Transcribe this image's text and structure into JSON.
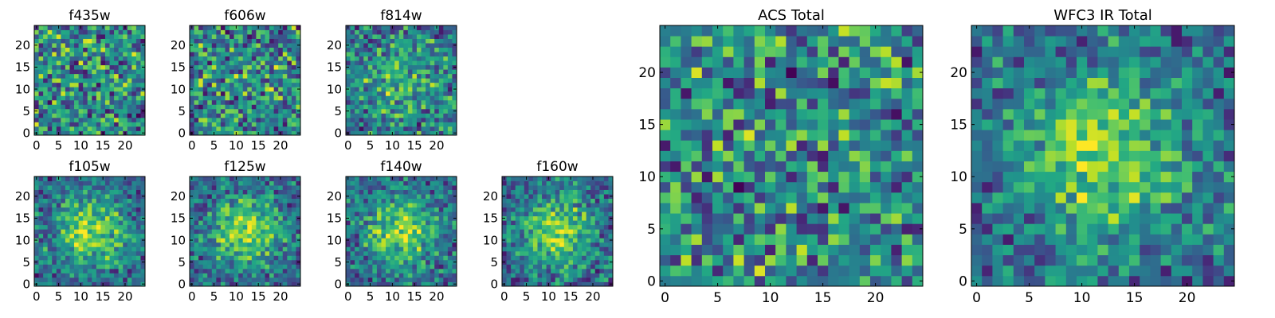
{
  "colormap": "viridis",
  "colors": {
    "low": "#440154",
    "mid": "#21918c",
    "high": "#fde725"
  },
  "chart_data": [
    {
      "type": "heatmap",
      "title": "f435w",
      "grid_size": [
        25,
        25
      ],
      "xlim": [
        -0.5,
        24.5
      ],
      "ylim": [
        -0.5,
        24.5
      ],
      "xticks": [
        0,
        5,
        10,
        15,
        20
      ],
      "yticks": [
        0,
        5,
        10,
        15,
        20
      ],
      "pattern": "uniform noise",
      "seed": 11
    },
    {
      "type": "heatmap",
      "title": "f606w",
      "grid_size": [
        25,
        25
      ],
      "xlim": [
        -0.5,
        24.5
      ],
      "ylim": [
        -0.5,
        24.5
      ],
      "xticks": [
        0,
        5,
        10,
        15,
        20
      ],
      "yticks": [
        0,
        5,
        10,
        15,
        20
      ],
      "pattern": "uniform noise",
      "seed": 23
    },
    {
      "type": "heatmap",
      "title": "f814w",
      "grid_size": [
        25,
        25
      ],
      "xlim": [
        -0.5,
        24.5
      ],
      "ylim": [
        -0.5,
        24.5
      ],
      "xticks": [
        0,
        5,
        10,
        15,
        20
      ],
      "yticks": [
        0,
        5,
        10,
        15,
        20
      ],
      "pattern": "noise with faint central source",
      "seed": 37
    },
    {
      "type": "heatmap",
      "title": "f105w",
      "grid_size": [
        25,
        25
      ],
      "xlim": [
        -0.5,
        24.5
      ],
      "ylim": [
        -0.5,
        24.5
      ],
      "xticks": [
        0,
        5,
        10,
        15,
        20
      ],
      "yticks": [
        0,
        5,
        10,
        15,
        20
      ],
      "pattern": "central source",
      "seed": 41
    },
    {
      "type": "heatmap",
      "title": "f125w",
      "grid_size": [
        25,
        25
      ],
      "xlim": [
        -0.5,
        24.5
      ],
      "ylim": [
        -0.5,
        24.5
      ],
      "xticks": [
        0,
        5,
        10,
        15,
        20
      ],
      "yticks": [
        0,
        5,
        10,
        15,
        20
      ],
      "pattern": "central source",
      "seed": 53
    },
    {
      "type": "heatmap",
      "title": "f140w",
      "grid_size": [
        25,
        25
      ],
      "xlim": [
        -0.5,
        24.5
      ],
      "ylim": [
        -0.5,
        24.5
      ],
      "xticks": [
        0,
        5,
        10,
        15,
        20
      ],
      "yticks": [
        0,
        5,
        10,
        15,
        20
      ],
      "pattern": "central source",
      "seed": 67
    },
    {
      "type": "heatmap",
      "title": "f160w",
      "grid_size": [
        25,
        25
      ],
      "xlim": [
        -0.5,
        24.5
      ],
      "ylim": [
        -0.5,
        24.5
      ],
      "xticks": [
        0,
        5,
        10,
        15,
        20
      ],
      "yticks": [
        0,
        5,
        10,
        15,
        20
      ],
      "pattern": "central source",
      "seed": 79
    },
    {
      "type": "heatmap",
      "title": "ACS Total",
      "grid_size": [
        25,
        25
      ],
      "xlim": [
        -0.5,
        24.5
      ],
      "ylim": [
        -0.5,
        24.5
      ],
      "xticks": [
        0,
        5,
        10,
        15,
        20
      ],
      "yticks": [
        0,
        5,
        10,
        15,
        20
      ],
      "pattern": "uniform noise",
      "seed": 97
    },
    {
      "type": "heatmap",
      "title": "WFC3 IR Total",
      "grid_size": [
        25,
        25
      ],
      "xlim": [
        -0.5,
        24.5
      ],
      "ylim": [
        -0.5,
        24.5
      ],
      "xticks": [
        0,
        5,
        10,
        15,
        20
      ],
      "yticks": [
        0,
        5,
        10,
        15,
        20
      ],
      "pattern": "central source",
      "seed": 113
    }
  ]
}
